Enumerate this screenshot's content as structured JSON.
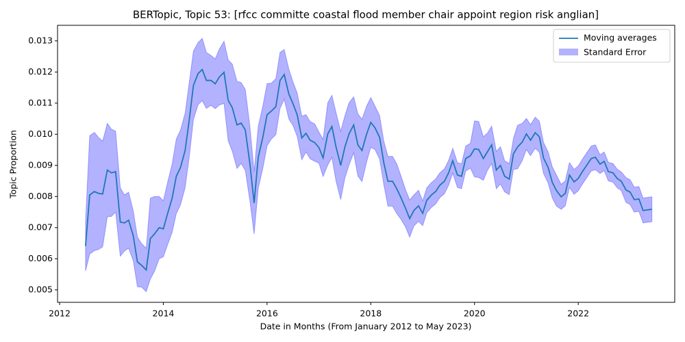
{
  "chart_data": {
    "type": "line",
    "title": "BERTopic, Topic 53: [rfcc committe coastal flood member chair appoint region risk anglian]",
    "x_label": "Date in Months (From January 2012 to May 2023)",
    "y_label": "Topic Proportion",
    "xlim": [
      2011.96,
      2023.86
    ],
    "ylim": [
      0.0046,
      0.0135
    ],
    "xticks": [
      2012,
      2014,
      2016,
      2018,
      2020,
      2022
    ],
    "yticks": [
      0.005,
      0.006,
      0.007,
      0.008,
      0.009,
      {
        "value": 0.01,
        "label": "0.010"
      },
      0.011,
      0.012,
      0.013
    ],
    "legend": "upper right",
    "x": [
      2012.5,
      2012.58,
      2012.67,
      2012.75,
      2012.83,
      2012.92,
      2013.0,
      2013.08,
      2013.17,
      2013.25,
      2013.33,
      2013.42,
      2013.5,
      2013.58,
      2013.67,
      2013.75,
      2013.83,
      2013.92,
      2014.0,
      2014.08,
      2014.17,
      2014.25,
      2014.33,
      2014.42,
      2014.5,
      2014.58,
      2014.67,
      2014.75,
      2014.83,
      2014.92,
      2015.0,
      2015.08,
      2015.17,
      2015.25,
      2015.33,
      2015.42,
      2015.5,
      2015.58,
      2015.67,
      2015.75,
      2015.83,
      2015.92,
      2016.0,
      2016.08,
      2016.17,
      2016.25,
      2016.33,
      2016.42,
      2016.5,
      2016.58,
      2016.67,
      2016.75,
      2016.83,
      2016.92,
      2017.0,
      2017.08,
      2017.17,
      2017.25,
      2017.33,
      2017.42,
      2017.5,
      2017.58,
      2017.67,
      2017.75,
      2017.83,
      2017.92,
      2018.0,
      2018.08,
      2018.17,
      2018.25,
      2018.33,
      2018.42,
      2018.5,
      2018.58,
      2018.67,
      2018.75,
      2018.83,
      2018.92,
      2019.0,
      2019.08,
      2019.17,
      2019.25,
      2019.33,
      2019.42,
      2019.5,
      2019.58,
      2019.67,
      2019.75,
      2019.83,
      2019.92,
      2020.0,
      2020.08,
      2020.17,
      2020.25,
      2020.33,
      2020.42,
      2020.5,
      2020.58,
      2020.67,
      2020.75,
      2020.83,
      2020.92,
      2021.0,
      2021.08,
      2021.17,
      2021.25,
      2021.33,
      2021.42,
      2021.5,
      2021.58,
      2021.67,
      2021.75,
      2021.83,
      2021.92,
      2022.0,
      2022.08,
      2022.17,
      2022.25,
      2022.33,
      2022.42,
      2022.5,
      2022.58,
      2022.67,
      2022.75,
      2022.83,
      2022.92,
      2023.0,
      2023.08,
      2023.17,
      2023.25,
      2023.33,
      2023.42
    ],
    "series": [
      {
        "name": "Moving averages",
        "color": "#1f77b4",
        "values": [
          0.00641,
          0.00805,
          0.00816,
          0.0081,
          0.00808,
          0.00885,
          0.00876,
          0.0088,
          0.00718,
          0.00715,
          0.00724,
          0.00674,
          0.0059,
          0.00579,
          0.00564,
          0.00665,
          0.0068,
          0.007,
          0.00696,
          0.00744,
          0.00795,
          0.00865,
          0.00893,
          0.00948,
          0.01047,
          0.01157,
          0.01195,
          0.01208,
          0.01173,
          0.01173,
          0.01162,
          0.01184,
          0.01199,
          0.01109,
          0.01085,
          0.0103,
          0.01036,
          0.01014,
          0.00904,
          0.00779,
          0.00926,
          0.00992,
          0.01063,
          0.01074,
          0.01089,
          0.01173,
          0.01192,
          0.01129,
          0.01098,
          0.01063,
          0.00988,
          0.01003,
          0.00981,
          0.00973,
          0.00957,
          0.00924,
          0.01001,
          0.01025,
          0.00959,
          0.009,
          0.00959,
          0.01001,
          0.0103,
          0.00966,
          0.00948,
          0.01001,
          0.01038,
          0.01021,
          0.0099,
          0.00909,
          0.00849,
          0.00849,
          0.00825,
          0.00797,
          0.00762,
          0.00729,
          0.00755,
          0.0077,
          0.00746,
          0.00788,
          0.00805,
          0.00816,
          0.00836,
          0.00849,
          0.00876,
          0.00915,
          0.00869,
          0.00865,
          0.00922,
          0.00931,
          0.00953,
          0.00951,
          0.00922,
          0.00944,
          0.00966,
          0.00885,
          0.009,
          0.00865,
          0.00856,
          0.00937,
          0.00959,
          0.00975,
          0.01001,
          0.00981,
          0.01005,
          0.00992,
          0.00924,
          0.00893,
          0.00845,
          0.00819,
          0.00799,
          0.0081,
          0.00869,
          0.00847,
          0.00858,
          0.0088,
          0.00902,
          0.00922,
          0.00926,
          0.00904,
          0.00913,
          0.0088,
          0.00876,
          0.00858,
          0.00849,
          0.00821,
          0.00814,
          0.0079,
          0.00792,
          0.00755,
          0.00757,
          0.00759
        ]
      }
    ],
    "band": {
      "name": "Standard Error",
      "color": "#0000ff",
      "errors": [
        0.0008,
        0.0019,
        0.0019,
        0.0018,
        0.0017,
        0.0015,
        0.0014,
        0.0013,
        0.0011,
        0.0009,
        0.0009,
        0.0008,
        0.0008,
        0.0007,
        0.0007,
        0.0013,
        0.0012,
        0.001,
        0.0009,
        0.001,
        0.0011,
        0.0012,
        0.0012,
        0.0012,
        0.0012,
        0.0011,
        0.001,
        0.001,
        0.0009,
        0.0008,
        0.0008,
        0.0009,
        0.001,
        0.0013,
        0.0014,
        0.0014,
        0.0013,
        0.0013,
        0.0012,
        0.001,
        0.001,
        0.001,
        0.001,
        0.0009,
        0.0009,
        0.0009,
        0.0008,
        0.0008,
        0.0007,
        0.0007,
        0.0007,
        0.0006,
        0.0006,
        0.0006,
        0.0005,
        0.0006,
        0.001,
        0.001,
        0.0011,
        0.0011,
        0.001,
        0.001,
        0.0009,
        0.001,
        0.001,
        0.0009,
        0.0008,
        0.0007,
        0.0007,
        0.0007,
        0.0008,
        0.0008,
        0.0008,
        0.0007,
        0.0006,
        0.0006,
        0.0005,
        0.0005,
        0.0004,
        0.0004,
        0.0004,
        0.0004,
        0.0004,
        0.0004,
        0.0004,
        0.0004,
        0.0004,
        0.0004,
        0.0004,
        0.0004,
        0.0009,
        0.0009,
        0.0007,
        0.0006,
        0.0006,
        0.0006,
        0.0006,
        0.0005,
        0.0005,
        0.0005,
        0.0007,
        0.0006,
        0.0005,
        0.0005,
        0.0005,
        0.0005,
        0.0005,
        0.0005,
        0.0005,
        0.0005,
        0.0004,
        0.0004,
        0.0004,
        0.0004,
        0.0004,
        0.0004,
        0.0004,
        0.0004,
        0.0004,
        0.0003,
        0.0003,
        0.0003,
        0.0003,
        0.0003,
        0.0003,
        0.0004,
        0.0004,
        0.0004,
        0.0004,
        0.0004,
        0.0004,
        0.0004
      ]
    }
  }
}
